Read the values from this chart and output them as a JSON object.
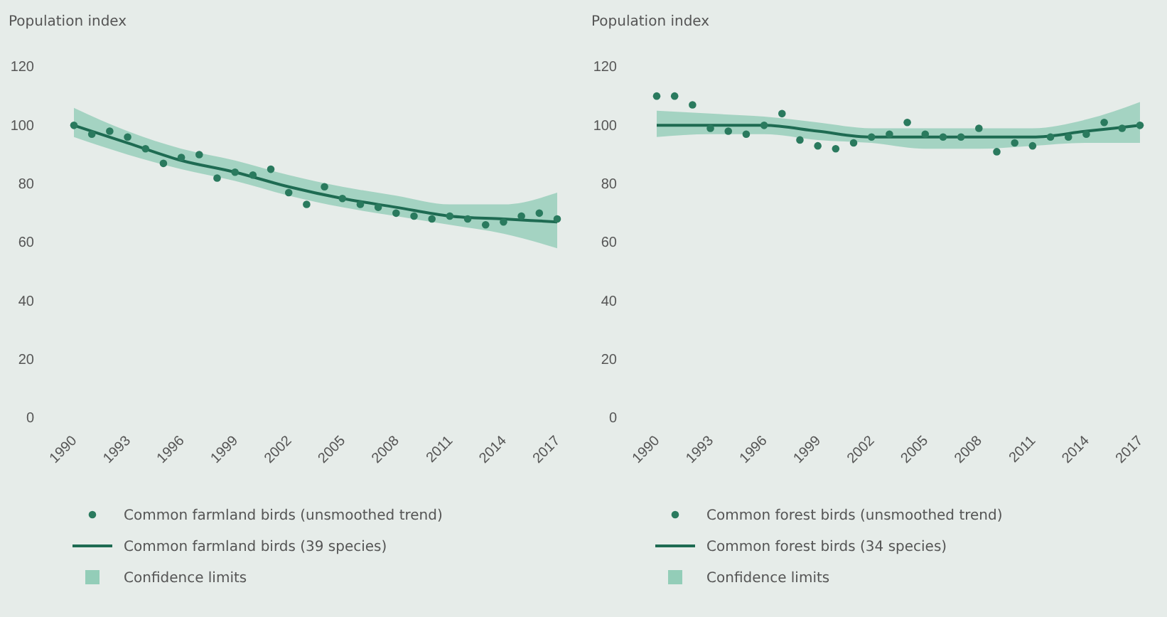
{
  "chart_data": [
    {
      "type": "line",
      "ylabel": "Population index",
      "xlim": [
        1990,
        2017
      ],
      "xticks": [
        1990,
        1993,
        1996,
        1999,
        2002,
        2005,
        2008,
        2011,
        2014,
        2017
      ],
      "ylim": [
        0,
        120
      ],
      "yticks": [
        0,
        20,
        40,
        60,
        80,
        100,
        120
      ],
      "legend": "bottom",
      "annotations": [
        "Confidence limits"
      ],
      "series": [
        {
          "type": "scatter",
          "name": "Common farmland birds (unsmoothed trend)",
          "color": "#2a7a5e",
          "marker": "circle",
          "x": [
            1990,
            1991,
            1992,
            1993,
            1994,
            1995,
            1996,
            1997,
            1998,
            1999,
            2000,
            2001,
            2002,
            2003,
            2004,
            2005,
            2006,
            2007,
            2008,
            2009,
            2010,
            2011,
            2012,
            2013,
            2014,
            2015,
            2016,
            2017
          ],
          "values": [
            100,
            97,
            98,
            96,
            92,
            87,
            89,
            90,
            82,
            84,
            83,
            85,
            77,
            73,
            79,
            75,
            73,
            72,
            70,
            69,
            68,
            69,
            68,
            66,
            67,
            69,
            70,
            68
          ]
        },
        {
          "name": "Common farmland birds (39 species)",
          "color": "#1e6b52",
          "x": [
            1990,
            1993,
            1996,
            1999,
            2002,
            2005,
            2008,
            2011,
            2014,
            2017
          ],
          "values": [
            100,
            94,
            88,
            84,
            79,
            75,
            72,
            69,
            68,
            67
          ],
          "lower": [
            96,
            90,
            85,
            81,
            76,
            72,
            69,
            66,
            63,
            58
          ],
          "upper": [
            106,
            98,
            92,
            88,
            83,
            79,
            76,
            73,
            73,
            77
          ]
        }
      ]
    },
    {
      "type": "line",
      "ylabel": "Population index",
      "xlim": [
        1990,
        2017
      ],
      "xticks": [
        1990,
        1993,
        1996,
        1999,
        2002,
        2005,
        2008,
        2011,
        2014,
        2017
      ],
      "ylim": [
        0,
        120
      ],
      "yticks": [
        0,
        20,
        40,
        60,
        80,
        100,
        120
      ],
      "legend": "bottom",
      "annotations": [
        "Confidence limits"
      ],
      "series": [
        {
          "type": "scatter",
          "name": "Common forest birds (unsmoothed trend)",
          "color": "#2a7a5e",
          "marker": "circle",
          "x": [
            1990,
            1991,
            1992,
            1993,
            1994,
            1995,
            1996,
            1997,
            1998,
            1999,
            2000,
            2001,
            2002,
            2003,
            2004,
            2005,
            2006,
            2007,
            2008,
            2009,
            2010,
            2011,
            2012,
            2013,
            2014,
            2015,
            2016,
            2017
          ],
          "values": [
            110,
            110,
            107,
            99,
            98,
            97,
            100,
            104,
            95,
            93,
            92,
            94,
            96,
            97,
            101,
            97,
            96,
            96,
            99,
            91,
            94,
            93,
            96,
            96,
            97,
            101,
            99,
            100
          ]
        },
        {
          "name": "Common forest birds (34 species)",
          "color": "#1e6b52",
          "x": [
            1990,
            1993,
            1996,
            1999,
            2002,
            2005,
            2008,
            2011,
            2014,
            2017
          ],
          "values": [
            100,
            100,
            100,
            98,
            96,
            96,
            96,
            96,
            98,
            100
          ],
          "lower": [
            96,
            97,
            97,
            95,
            94,
            92,
            92,
            93,
            94,
            94
          ],
          "upper": [
            105,
            104,
            103,
            101,
            99,
            99,
            99,
            99,
            102,
            108
          ]
        }
      ]
    }
  ]
}
